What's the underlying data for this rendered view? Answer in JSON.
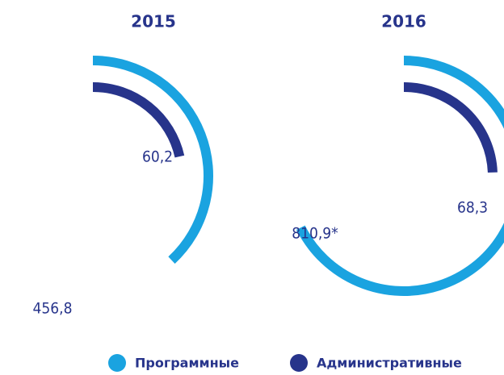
{
  "chart_data": {
    "type": "radial_bar",
    "categories": [
      "2015",
      "2016"
    ],
    "series": [
      {
        "name": "Программные",
        "color": "#1aa3e0",
        "values": [
          456.8,
          810.9
        ],
        "value_labels": [
          "456,8",
          "810,9*"
        ]
      },
      {
        "name": "Административные",
        "color": "#27348b",
        "values": [
          60.2,
          68.3
        ],
        "value_labels": [
          "60,2",
          "68,3"
        ]
      }
    ]
  }
}
